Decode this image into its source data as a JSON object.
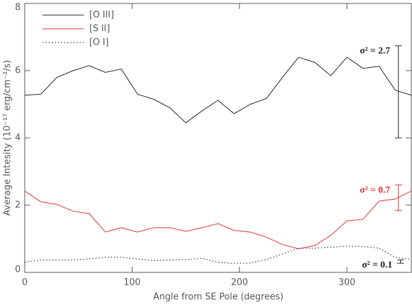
{
  "chart_data": {
    "type": "line",
    "xlabel": "Angle from SE Pole (degrees)",
    "ylabel": "Average Intesity (10⁻¹⁷ erg/cm⁻²/s)",
    "x": [
      0,
      15,
      30,
      45,
      60,
      75,
      90,
      105,
      120,
      135,
      150,
      165,
      180,
      195,
      210,
      225,
      240,
      255,
      270,
      285,
      300,
      315,
      330,
      345,
      360
    ],
    "series": [
      {
        "name": "[O III]",
        "color": "#222222",
        "style": "solid",
        "values": [
          5.27,
          5.3,
          5.8,
          6.0,
          6.15,
          5.95,
          6.05,
          5.3,
          5.15,
          4.9,
          4.45,
          4.8,
          5.12,
          4.72,
          5.0,
          5.17,
          5.8,
          6.4,
          6.25,
          5.85,
          6.4,
          6.07,
          6.13,
          5.42,
          5.27
        ]
      },
      {
        "name": "[S II]",
        "color": "#e03030",
        "style": "solid",
        "values": [
          2.42,
          2.1,
          2.02,
          1.82,
          1.75,
          1.2,
          1.33,
          1.2,
          1.33,
          1.33,
          1.22,
          1.33,
          1.45,
          1.25,
          1.2,
          1.05,
          0.83,
          0.7,
          0.8,
          1.1,
          1.53,
          1.58,
          2.12,
          2.18,
          2.42
        ]
      },
      {
        "name": "[O I]",
        "color": "#333366",
        "style": "dotted",
        "values": [
          0.3,
          0.37,
          0.37,
          0.37,
          0.4,
          0.45,
          0.45,
          0.4,
          0.35,
          0.37,
          0.38,
          0.42,
          0.3,
          0.27,
          0.28,
          0.38,
          0.55,
          0.72,
          0.72,
          0.75,
          0.78,
          0.77,
          0.72,
          0.45,
          0.38
        ]
      }
    ],
    "error_bars": [
      {
        "x": 348,
        "center": 5.37,
        "error": 1.37,
        "color": "#222222",
        "label": "σ² = 2.7"
      },
      {
        "x": 348,
        "center": 2.22,
        "error": 0.38,
        "color": "#e03030",
        "label": "σ² = 0.7"
      },
      {
        "x": 350,
        "center": 0.32,
        "error": 0.05,
        "color": "#222222",
        "label": "σ² = 0.1"
      }
    ],
    "xlim": [
      0,
      360
    ],
    "xticks": [
      0,
      100,
      200,
      300
    ],
    "ylim": [
      0,
      8
    ],
    "yticks": [
      0,
      2,
      4,
      6,
      8
    ],
    "legend": "upper-left"
  }
}
